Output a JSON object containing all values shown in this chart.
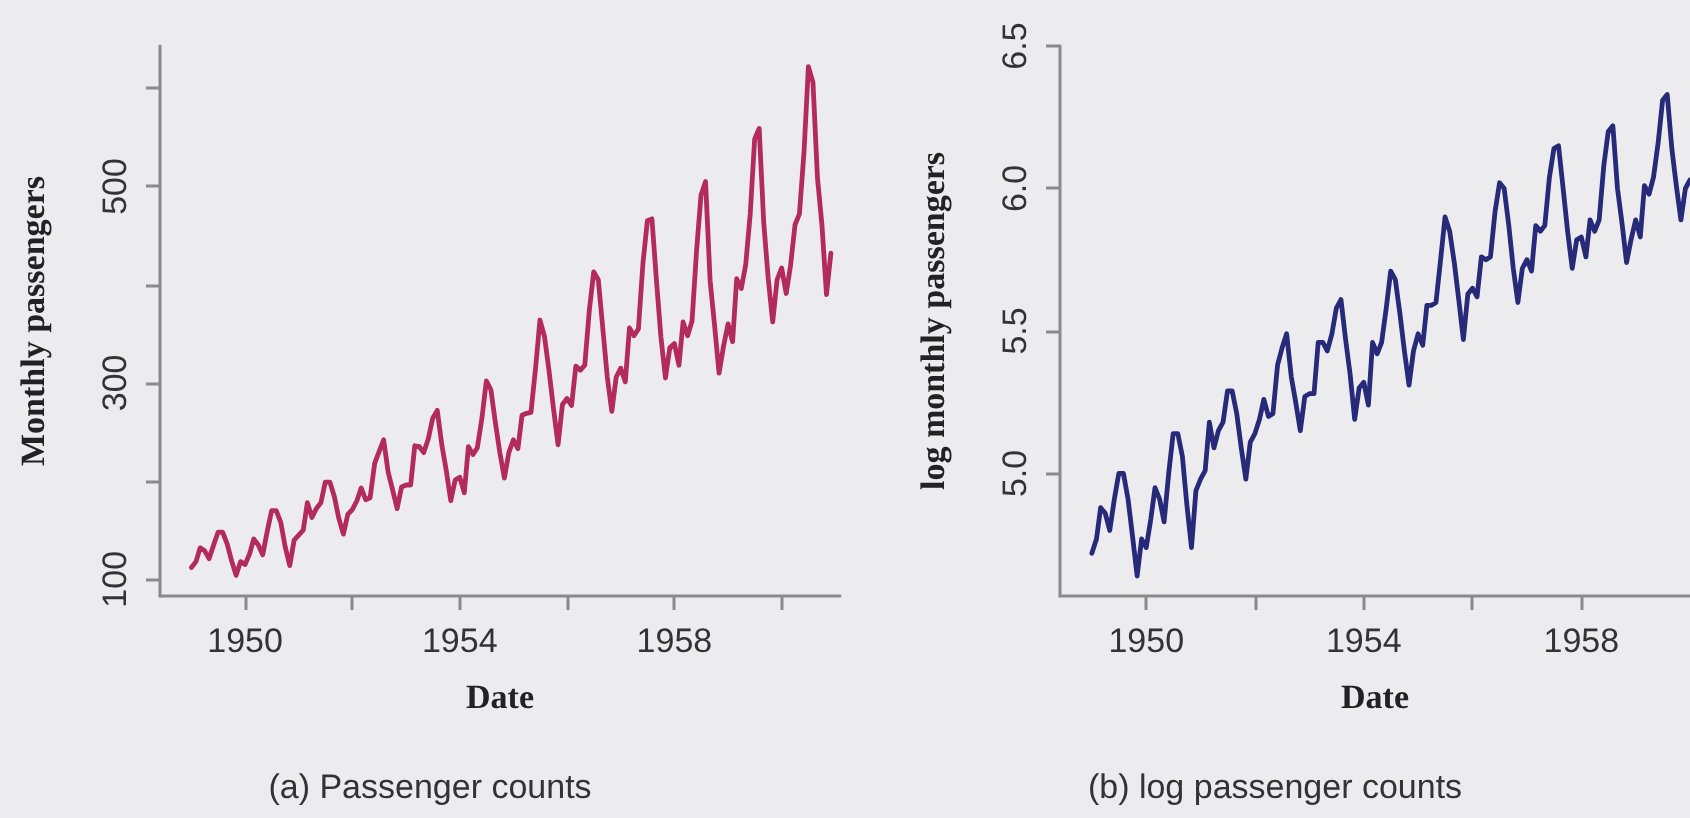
{
  "chart_data": [
    {
      "type": "line",
      "title": "(a) Passenger counts",
      "xlabel": "Date",
      "ylabel": "Monthly passengers",
      "marker": "none",
      "line_style": "solid",
      "xlim": [
        "1948-06",
        "1961-02"
      ],
      "xticks": [
        {
          "value": "1950",
          "label": "1950"
        },
        {
          "value": "1952",
          "label": null
        },
        {
          "value": "1954",
          "label": "1954"
        },
        {
          "value": "1956",
          "label": null
        },
        {
          "value": "1958",
          "label": "1958"
        },
        {
          "value": "1960",
          "label": null
        }
      ],
      "ylim": [
        83,
        643
      ],
      "yticks": [
        100,
        {
          "value": 200,
          "label": null
        },
        300,
        {
          "value": 400,
          "label": null
        },
        500,
        {
          "value": 600,
          "label": null
        }
      ],
      "x": [
        "1949-01",
        "1949-02",
        "1949-03",
        "1949-04",
        "1949-05",
        "1949-06",
        "1949-07",
        "1949-08",
        "1949-09",
        "1949-10",
        "1949-11",
        "1949-12",
        "1950-01",
        "1950-02",
        "1950-03",
        "1950-04",
        "1950-05",
        "1950-06",
        "1950-07",
        "1950-08",
        "1950-09",
        "1950-10",
        "1950-11",
        "1950-12",
        "1951-01",
        "1951-02",
        "1951-03",
        "1951-04",
        "1951-05",
        "1951-06",
        "1951-07",
        "1951-08",
        "1951-09",
        "1951-10",
        "1951-11",
        "1951-12",
        "1952-01",
        "1952-02",
        "1952-03",
        "1952-04",
        "1952-05",
        "1952-06",
        "1952-07",
        "1952-08",
        "1952-09",
        "1952-10",
        "1952-11",
        "1952-12",
        "1953-01",
        "1953-02",
        "1953-03",
        "1953-04",
        "1953-05",
        "1953-06",
        "1953-07",
        "1953-08",
        "1953-09",
        "1953-10",
        "1953-11",
        "1953-12",
        "1954-01",
        "1954-02",
        "1954-03",
        "1954-04",
        "1954-05",
        "1954-06",
        "1954-07",
        "1954-08",
        "1954-09",
        "1954-10",
        "1954-11",
        "1954-12",
        "1955-01",
        "1955-02",
        "1955-03",
        "1955-04",
        "1955-05",
        "1955-06",
        "1955-07",
        "1955-08",
        "1955-09",
        "1955-10",
        "1955-11",
        "1955-12",
        "1956-01",
        "1956-02",
        "1956-03",
        "1956-04",
        "1956-05",
        "1956-06",
        "1956-07",
        "1956-08",
        "1956-09",
        "1956-10",
        "1956-11",
        "1956-12",
        "1957-01",
        "1957-02",
        "1957-03",
        "1957-04",
        "1957-05",
        "1957-06",
        "1957-07",
        "1957-08",
        "1957-09",
        "1957-10",
        "1957-11",
        "1957-12",
        "1958-01",
        "1958-02",
        "1958-03",
        "1958-04",
        "1958-05",
        "1958-06",
        "1958-07",
        "1958-08",
        "1958-09",
        "1958-10",
        "1958-11",
        "1958-12",
        "1959-01",
        "1959-02",
        "1959-03",
        "1959-04",
        "1959-05",
        "1959-06",
        "1959-07",
        "1959-08",
        "1959-09",
        "1959-10",
        "1959-11",
        "1959-12",
        "1960-01",
        "1960-02",
        "1960-03",
        "1960-04",
        "1960-05",
        "1960-06",
        "1960-07",
        "1960-08",
        "1960-09",
        "1960-10",
        "1960-11",
        "1960-12"
      ],
      "series": [
        {
          "color": "#b32a5c",
          "values": [
            112,
            118,
            132,
            129,
            121,
            135,
            148,
            148,
            136,
            119,
            104,
            118,
            115,
            126,
            141,
            135,
            125,
            149,
            170,
            170,
            158,
            133,
            114,
            140,
            145,
            150,
            178,
            163,
            172,
            178,
            199,
            199,
            184,
            162,
            146,
            166,
            171,
            180,
            193,
            181,
            183,
            218,
            230,
            242,
            209,
            191,
            172,
            194,
            196,
            196,
            236,
            235,
            229,
            243,
            264,
            272,
            237,
            211,
            180,
            201,
            204,
            188,
            235,
            227,
            234,
            264,
            302,
            293,
            259,
            229,
            203,
            229,
            242,
            233,
            267,
            269,
            270,
            315,
            364,
            347,
            312,
            274,
            237,
            278,
            284,
            277,
            317,
            313,
            318,
            374,
            413,
            405,
            355,
            306,
            271,
            306,
            315,
            301,
            356,
            348,
            355,
            422,
            465,
            467,
            404,
            347,
            305,
            336,
            340,
            318,
            362,
            348,
            363,
            435,
            491,
            505,
            404,
            359,
            310,
            337,
            360,
            342,
            406,
            396,
            420,
            472,
            548,
            559,
            463,
            407,
            362,
            405,
            417,
            391,
            419,
            461,
            472,
            535,
            622,
            606,
            508,
            461,
            390,
            432
          ]
        }
      ]
    },
    {
      "type": "line",
      "title": "(b) log passenger counts",
      "xlabel": "Date",
      "ylabel": "log monthly passengers",
      "marker": "none",
      "line_style": "solid",
      "xlim": [
        "1948-06",
        "1960-01"
      ],
      "xticks": [
        {
          "value": "1950",
          "label": "1950"
        },
        {
          "value": "1952",
          "label": null
        },
        {
          "value": "1954",
          "label": "1954"
        },
        {
          "value": "1956",
          "label": null
        },
        {
          "value": "1958",
          "label": "1958"
        }
      ],
      "ylim": [
        4.57,
        6.5
      ],
      "yticks": [
        {
          "value": 5,
          "label": "5.0"
        },
        {
          "value": 5.5,
          "label": "5.5"
        },
        {
          "value": 6,
          "label": "6.0"
        },
        {
          "value": 6.5,
          "label": "6.5"
        }
      ],
      "x": [
        "1949-01",
        "1949-02",
        "1949-03",
        "1949-04",
        "1949-05",
        "1949-06",
        "1949-07",
        "1949-08",
        "1949-09",
        "1949-10",
        "1949-11",
        "1949-12",
        "1950-01",
        "1950-02",
        "1950-03",
        "1950-04",
        "1950-05",
        "1950-06",
        "1950-07",
        "1950-08",
        "1950-09",
        "1950-10",
        "1950-11",
        "1950-12",
        "1951-01",
        "1951-02",
        "1951-03",
        "1951-04",
        "1951-05",
        "1951-06",
        "1951-07",
        "1951-08",
        "1951-09",
        "1951-10",
        "1951-11",
        "1951-12",
        "1952-01",
        "1952-02",
        "1952-03",
        "1952-04",
        "1952-05",
        "1952-06",
        "1952-07",
        "1952-08",
        "1952-09",
        "1952-10",
        "1952-11",
        "1952-12",
        "1953-01",
        "1953-02",
        "1953-03",
        "1953-04",
        "1953-05",
        "1953-06",
        "1953-07",
        "1953-08",
        "1953-09",
        "1953-10",
        "1953-11",
        "1953-12",
        "1954-01",
        "1954-02",
        "1954-03",
        "1954-04",
        "1954-05",
        "1954-06",
        "1954-07",
        "1954-08",
        "1954-09",
        "1954-10",
        "1954-11",
        "1954-12",
        "1955-01",
        "1955-02",
        "1955-03",
        "1955-04",
        "1955-05",
        "1955-06",
        "1955-07",
        "1955-08",
        "1955-09",
        "1955-10",
        "1955-11",
        "1955-12",
        "1956-01",
        "1956-02",
        "1956-03",
        "1956-04",
        "1956-05",
        "1956-06",
        "1956-07",
        "1956-08",
        "1956-09",
        "1956-10",
        "1956-11",
        "1956-12",
        "1957-01",
        "1957-02",
        "1957-03",
        "1957-04",
        "1957-05",
        "1957-06",
        "1957-07",
        "1957-08",
        "1957-09",
        "1957-10",
        "1957-11",
        "1957-12",
        "1958-01",
        "1958-02",
        "1958-03",
        "1958-04",
        "1958-05",
        "1958-06",
        "1958-07",
        "1958-08",
        "1958-09",
        "1958-10",
        "1958-11",
        "1958-12",
        "1959-01",
        "1959-02",
        "1959-03",
        "1959-04",
        "1959-05",
        "1959-06",
        "1959-07",
        "1959-08",
        "1959-09",
        "1959-10",
        "1959-11",
        "1959-12",
        "1960-01"
      ],
      "series": [
        {
          "color": "#262a78",
          "values": [
            4.72,
            4.77,
            4.88,
            4.86,
            4.8,
            4.91,
            5.0,
            5.0,
            4.91,
            4.78,
            4.64,
            4.77,
            4.74,
            4.84,
            4.95,
            4.91,
            4.83,
            5.0,
            5.14,
            5.14,
            5.06,
            4.89,
            4.74,
            4.94,
            4.98,
            5.01,
            5.18,
            5.09,
            5.15,
            5.18,
            5.29,
            5.29,
            5.21,
            5.09,
            4.98,
            5.11,
            5.14,
            5.19,
            5.26,
            5.2,
            5.21,
            5.38,
            5.44,
            5.49,
            5.34,
            5.25,
            5.15,
            5.27,
            5.28,
            5.28,
            5.46,
            5.46,
            5.43,
            5.49,
            5.58,
            5.61,
            5.47,
            5.35,
            5.19,
            5.3,
            5.32,
            5.24,
            5.46,
            5.42,
            5.46,
            5.58,
            5.71,
            5.68,
            5.56,
            5.43,
            5.31,
            5.43,
            5.49,
            5.45,
            5.59,
            5.59,
            5.6,
            5.75,
            5.9,
            5.85,
            5.74,
            5.61,
            5.47,
            5.63,
            5.65,
            5.62,
            5.76,
            5.75,
            5.76,
            5.92,
            6.02,
            6.0,
            5.87,
            5.72,
            5.6,
            5.72,
            5.75,
            5.71,
            5.87,
            5.85,
            5.87,
            6.04,
            6.14,
            6.15,
            6.0,
            5.85,
            5.72,
            5.82,
            5.83,
            5.76,
            5.89,
            5.85,
            5.89,
            6.08,
            6.2,
            6.22,
            6.0,
            5.88,
            5.74,
            5.82,
            5.89,
            5.83,
            6.01,
            5.98,
            6.04,
            6.16,
            6.31,
            6.33,
            6.14,
            6.01,
            5.89,
            6.0,
            6.03
          ]
        }
      ]
    }
  ]
}
